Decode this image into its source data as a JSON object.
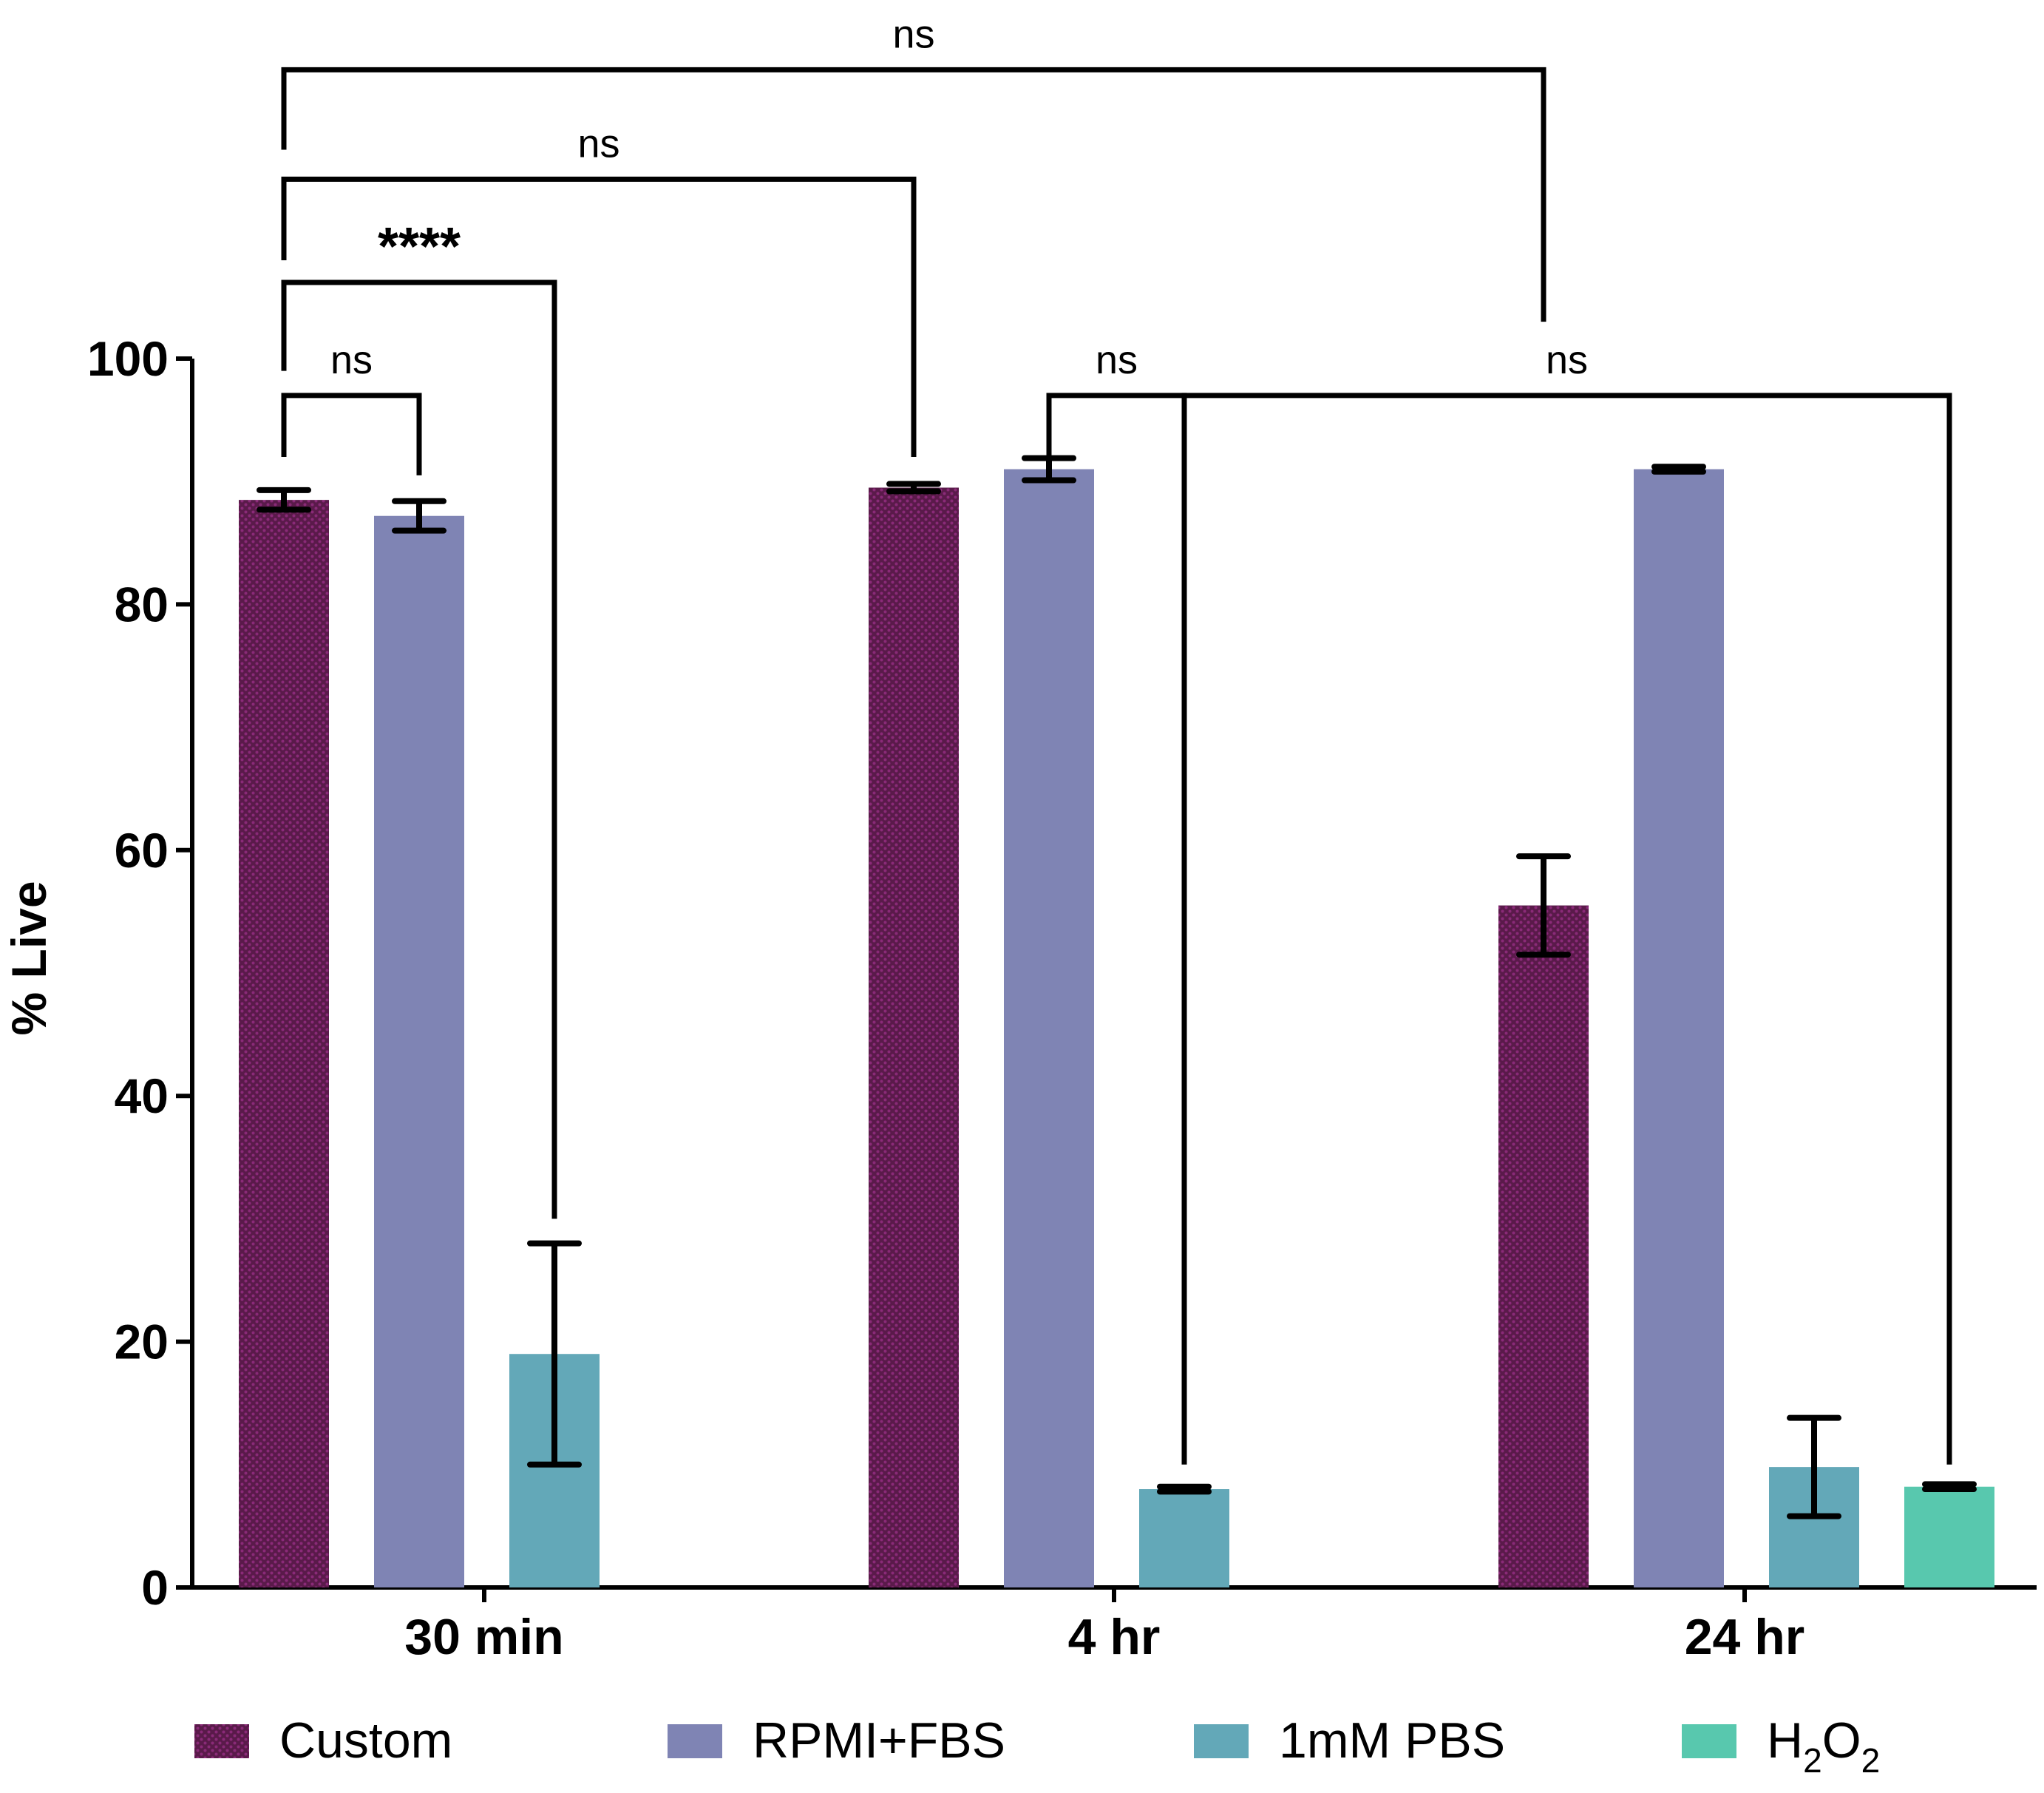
{
  "colors": {
    "custom_base": "#5a1a4a",
    "custom_dot": "#8a2a78",
    "rpmi": "#7f84b4",
    "pbs": "#63a8b8",
    "h2o2": "#58c8ae",
    "axis": "#000000"
  },
  "chart_data": {
    "type": "bar",
    "ylabel": "% Live",
    "xlabel": "",
    "ylim": [
      0,
      100
    ],
    "yticks": [
      "0",
      "20",
      "40",
      "60",
      "80",
      "100"
    ],
    "categories": [
      "30 min",
      "4 hr",
      "24 hr"
    ],
    "series": [
      {
        "name": "Custom",
        "color_key": "custom_base",
        "pattern": true,
        "values": [
          88.5,
          89.5,
          55.5
        ],
        "errors": [
          0.8,
          0.3,
          4.0
        ]
      },
      {
        "name": "RPMI+FBS",
        "color_key": "rpmi",
        "pattern": false,
        "values": [
          87.2,
          91.0,
          91.0
        ],
        "errors": [
          1.2,
          0.9,
          0.2
        ]
      },
      {
        "name": "1mM PBS",
        "color_key": "pbs",
        "pattern": false,
        "values": [
          19.0,
          8.0,
          9.8
        ],
        "errors": [
          9.0,
          0.2,
          4.0
        ]
      },
      {
        "name": "H2O2",
        "label_main": "H",
        "label_sub1": "2",
        "label_mid": "O",
        "label_sub2": "2",
        "color_key": "h2o2",
        "pattern": false,
        "values": [
          null,
          null,
          8.2
        ],
        "errors": [
          null,
          null,
          0.2
        ]
      }
    ],
    "significance": [
      {
        "label": "ns",
        "from": [
          0,
          0
        ],
        "to": [
          0,
          1
        ],
        "level": 97,
        "from_drop": 92,
        "to_drop": 90.5
      },
      {
        "label": "****",
        "from": [
          0,
          0
        ],
        "to": [
          0,
          2
        ],
        "level": 106.2,
        "from_drop": 99,
        "to_drop": 30
      },
      {
        "label": "ns",
        "from": [
          0,
          0
        ],
        "to": [
          1,
          0
        ],
        "level": 114.6,
        "from_drop": 108,
        "to_drop": 92
      },
      {
        "label": "ns",
        "from": [
          0,
          0
        ],
        "to": [
          2,
          0
        ],
        "level": 123.5,
        "from_drop": 117,
        "to_drop": 103
      },
      {
        "label": "ns",
        "from": [
          1,
          1
        ],
        "to": [
          1,
          2
        ],
        "level": 97,
        "from_drop": 92,
        "to_drop": 90.5
      },
      {
        "label": "ns",
        "from": [
          1,
          2
        ],
        "to": [
          2,
          3
        ],
        "level": 97,
        "from_drop": 10,
        "to_drop": 10
      }
    ]
  }
}
